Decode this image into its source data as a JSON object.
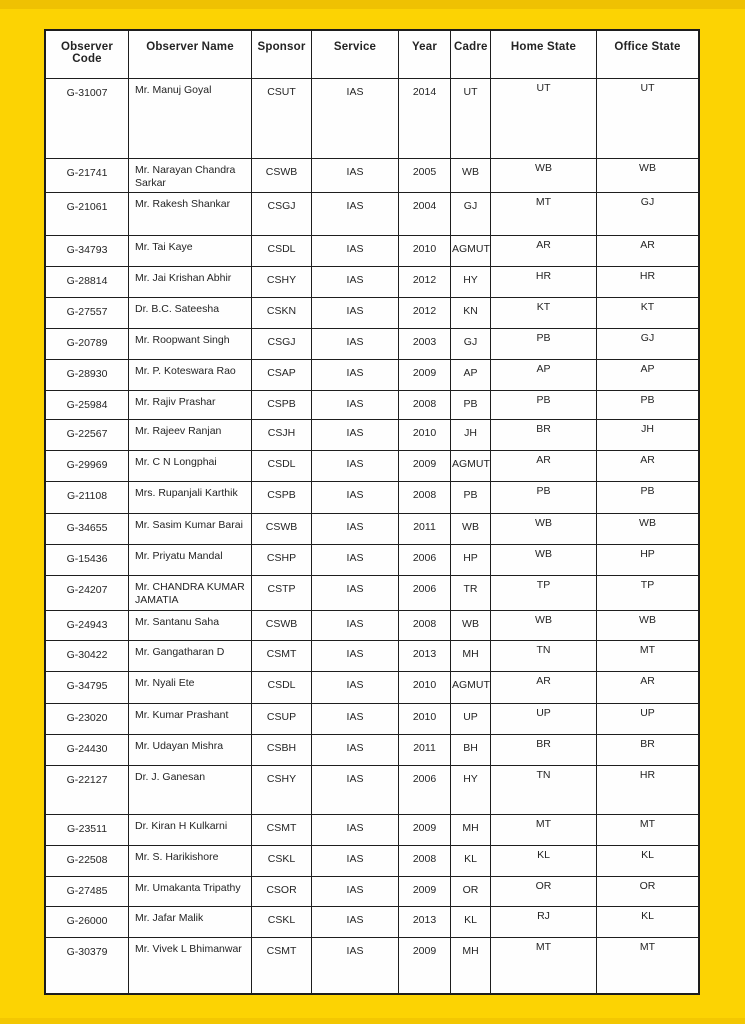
{
  "colors": {
    "page_background": "#FCD303",
    "top_strip": "#EFC102",
    "table_background": "#FEFEFE",
    "border": "#1E1E1E",
    "text": "#242424"
  },
  "table": {
    "columns": [
      {
        "key": "code",
        "label": "Observer Code"
      },
      {
        "key": "name",
        "label": "Observer Name"
      },
      {
        "key": "sponsor",
        "label": "Sponsor"
      },
      {
        "key": "service",
        "label": "Service"
      },
      {
        "key": "year",
        "label": "Year"
      },
      {
        "key": "cadre",
        "label": "Cadre"
      },
      {
        "key": "home",
        "label": "Home State"
      },
      {
        "key": "office",
        "label": "Office State"
      }
    ],
    "rows": [
      {
        "code": "G-31007",
        "name": "Mr. Manuj Goyal",
        "sponsor": "CSUT",
        "service": "IAS",
        "year": "2014",
        "cadre": "UT",
        "home": "UT",
        "office": "UT"
      },
      {
        "code": "G-21741",
        "name": "Mr. Narayan Chandra Sarkar",
        "sponsor": "CSWB",
        "service": "IAS",
        "year": "2005",
        "cadre": "WB",
        "home": "WB",
        "office": "WB"
      },
      {
        "code": "G-21061",
        "name": "Mr. Rakesh Shankar",
        "sponsor": "CSGJ",
        "service": "IAS",
        "year": "2004",
        "cadre": "GJ",
        "home": "MT",
        "office": "GJ"
      },
      {
        "code": "G-34793",
        "name": "Mr. Tai Kaye",
        "sponsor": "CSDL",
        "service": "IAS",
        "year": "2010",
        "cadre": "AGMUT",
        "home": "AR",
        "office": "AR"
      },
      {
        "code": "G-28814",
        "name": "Mr. Jai Krishan Abhir",
        "sponsor": "CSHY",
        "service": "IAS",
        "year": "2012",
        "cadre": "HY",
        "home": "HR",
        "office": "HR"
      },
      {
        "code": "G-27557",
        "name": "Dr. B.C. Sateesha",
        "sponsor": "CSKN",
        "service": "IAS",
        "year": "2012",
        "cadre": "KN",
        "home": "KT",
        "office": "KT"
      },
      {
        "code": "G-20789",
        "name": "Mr. Roopwant Singh",
        "sponsor": "CSGJ",
        "service": "IAS",
        "year": "2003",
        "cadre": "GJ",
        "home": "PB",
        "office": "GJ"
      },
      {
        "code": "G-28930",
        "name": "Mr. P. Koteswara Rao",
        "sponsor": "CSAP",
        "service": "IAS",
        "year": "2009",
        "cadre": "AP",
        "home": "AP",
        "office": "AP"
      },
      {
        "code": "G-25984",
        "name": "Mr. Rajiv Prashar",
        "sponsor": "CSPB",
        "service": "IAS",
        "year": "2008",
        "cadre": "PB",
        "home": "PB",
        "office": "PB"
      },
      {
        "code": "G-22567",
        "name": "Mr. Rajeev Ranjan",
        "sponsor": "CSJH",
        "service": "IAS",
        "year": "2010",
        "cadre": "JH",
        "home": "BR",
        "office": "JH"
      },
      {
        "code": "G-29969",
        "name": "Mr. C N Longphai",
        "sponsor": "CSDL",
        "service": "IAS",
        "year": "2009",
        "cadre": "AGMUT",
        "home": "AR",
        "office": "AR"
      },
      {
        "code": "G-21108",
        "name": "Mrs. Rupanjali Karthik",
        "sponsor": "CSPB",
        "service": "IAS",
        "year": "2008",
        "cadre": "PB",
        "home": "PB",
        "office": "PB"
      },
      {
        "code": "G-34655",
        "name": "Mr. Sasim Kumar Barai",
        "sponsor": "CSWB",
        "service": "IAS",
        "year": "2011",
        "cadre": "WB",
        "home": "WB",
        "office": "WB"
      },
      {
        "code": "G-15436",
        "name": "Mr. Priyatu Mandal",
        "sponsor": "CSHP",
        "service": "IAS",
        "year": "2006",
        "cadre": "HP",
        "home": "WB",
        "office": "HP"
      },
      {
        "code": "G-24207",
        "name": "Mr. CHANDRA KUMAR JAMATIA",
        "sponsor": "CSTP",
        "service": "IAS",
        "year": "2006",
        "cadre": "TR",
        "home": "TP",
        "office": "TP"
      },
      {
        "code": "G-24943",
        "name": "Mr. Santanu Saha",
        "sponsor": "CSWB",
        "service": "IAS",
        "year": "2008",
        "cadre": "WB",
        "home": "WB",
        "office": "WB"
      },
      {
        "code": "G-30422",
        "name": "Mr. Gangatharan D",
        "sponsor": "CSMT",
        "service": "IAS",
        "year": "2013",
        "cadre": "MH",
        "home": "TN",
        "office": "MT"
      },
      {
        "code": "G-34795",
        "name": "Mr. Nyali Ete",
        "sponsor": "CSDL",
        "service": "IAS",
        "year": "2010",
        "cadre": "AGMUT",
        "home": "AR",
        "office": "AR"
      },
      {
        "code": "G-23020",
        "name": "Mr. Kumar Prashant",
        "sponsor": "CSUP",
        "service": "IAS",
        "year": "2010",
        "cadre": "UP",
        "home": "UP",
        "office": "UP"
      },
      {
        "code": "G-24430",
        "name": "Mr. Udayan Mishra",
        "sponsor": "CSBH",
        "service": "IAS",
        "year": "2011",
        "cadre": "BH",
        "home": "BR",
        "office": "BR"
      },
      {
        "code": "G-22127",
        "name": "Dr. J. Ganesan",
        "sponsor": "CSHY",
        "service": "IAS",
        "year": "2006",
        "cadre": "HY",
        "home": "TN",
        "office": "HR"
      },
      {
        "code": "G-23511",
        "name": "Dr. Kiran H Kulkarni",
        "sponsor": "CSMT",
        "service": "IAS",
        "year": "2009",
        "cadre": "MH",
        "home": "MT",
        "office": "MT"
      },
      {
        "code": "G-22508",
        "name": "Mr. S. Harikishore",
        "sponsor": "CSKL",
        "service": "IAS",
        "year": "2008",
        "cadre": "KL",
        "home": "KL",
        "office": "KL"
      },
      {
        "code": "G-27485",
        "name": "Mr. Umakanta Tripathy",
        "sponsor": "CSOR",
        "service": "IAS",
        "year": "2009",
        "cadre": "OR",
        "home": "OR",
        "office": "OR"
      },
      {
        "code": "G-26000",
        "name": "Mr. Jafar Malik",
        "sponsor": "CSKL",
        "service": "IAS",
        "year": "2013",
        "cadre": "KL",
        "home": "RJ",
        "office": "KL"
      },
      {
        "code": "G-30379",
        "name": "Mr. Vivek L Bhimanwar",
        "sponsor": "CSMT",
        "service": "IAS",
        "year": "2009",
        "cadre": "MH",
        "home": "MT",
        "office": "MT"
      }
    ]
  }
}
